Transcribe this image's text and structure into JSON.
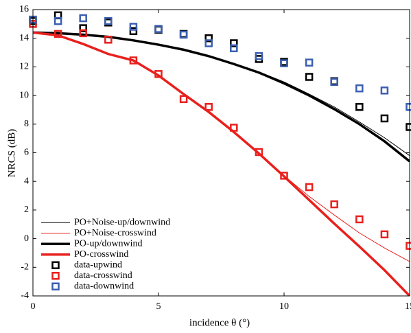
{
  "chart_data": {
    "type": "line",
    "xlabel": "incidence θ (°)",
    "ylabel": "NRCS (dB)",
    "x": [
      0,
      1,
      2,
      3,
      4,
      5,
      6,
      7,
      8,
      9,
      10,
      11,
      12,
      13,
      14,
      15
    ],
    "xlim": [
      0,
      15
    ],
    "xticks": [
      0,
      5,
      10,
      15
    ],
    "ylim": [
      -4,
      16
    ],
    "yticks": [
      -4,
      -2,
      0,
      2,
      4,
      6,
      8,
      10,
      12,
      14,
      16
    ],
    "legend": "lower left",
    "series": [
      {
        "name": "PO+Noise-up/downwind",
        "color": "#000000",
        "style": "line",
        "width": 1,
        "values": [
          14.4,
          14.35,
          14.25,
          14.1,
          13.85,
          13.55,
          13.2,
          12.8,
          12.25,
          11.65,
          10.95,
          10.1,
          9.2,
          8.15,
          7.05,
          5.8
        ]
      },
      {
        "name": "PO+Noise-crosswind",
        "color": "#e8201d",
        "style": "line",
        "width": 1,
        "values": [
          14.4,
          14.2,
          13.6,
          12.9,
          12.45,
          11.4,
          10.1,
          8.85,
          7.45,
          5.95,
          4.4,
          2.95,
          1.65,
          0.4,
          -0.65,
          -1.6
        ]
      },
      {
        "name": "PO-up/downwind",
        "color": "#000000",
        "style": "line",
        "width": 3.5,
        "values": [
          14.4,
          14.35,
          14.25,
          14.1,
          13.85,
          13.55,
          13.2,
          12.75,
          12.2,
          11.6,
          10.85,
          10.0,
          9.05,
          8.0,
          6.8,
          5.4
        ]
      },
      {
        "name": "PO-crosswind",
        "color": "#e8201d",
        "style": "line",
        "width": 3.5,
        "values": [
          14.4,
          14.2,
          13.6,
          12.9,
          12.45,
          11.4,
          10.1,
          8.85,
          7.45,
          5.95,
          4.35,
          2.7,
          1.05,
          -0.55,
          -2.2,
          -4.0
        ]
      },
      {
        "name": "data-upwind",
        "color": "#000000",
        "style": "marker",
        "values": [
          15.2,
          15.6,
          14.7,
          15.1,
          14.5,
          14.6,
          14.3,
          14.0,
          13.65,
          12.55,
          12.35,
          11.3,
          11.0,
          9.2,
          8.4,
          7.8
        ]
      },
      {
        "name": "data-crosswind",
        "color": "#e8201d",
        "style": "marker",
        "values": [
          15.0,
          14.3,
          14.35,
          13.9,
          12.45,
          11.5,
          9.75,
          9.2,
          7.75,
          6.05,
          4.4,
          3.6,
          2.4,
          1.35,
          0.3,
          -0.5
        ]
      },
      {
        "name": "data-downwind",
        "color": "#3a5fb0",
        "style": "marker",
        "values": [
          15.3,
          15.2,
          15.4,
          15.2,
          14.8,
          14.65,
          14.25,
          13.65,
          13.3,
          12.75,
          12.25,
          12.3,
          10.95,
          10.5,
          10.35,
          9.2
        ]
      }
    ]
  }
}
